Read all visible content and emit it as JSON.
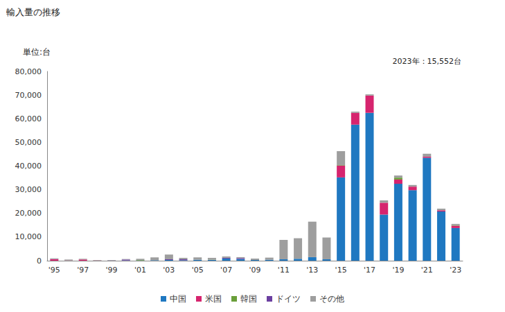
{
  "chart_data": {
    "type": "bar",
    "title": "輸入量の推移",
    "ylabel": "単位:台",
    "annotations": [
      "2023年：15,552台"
    ],
    "stacked": true,
    "grid": false,
    "legend": "bottom",
    "categories": [
      "'95",
      null,
      "'97",
      null,
      "'99",
      null,
      "'01",
      null,
      "'03",
      null,
      "'05",
      null,
      "'07",
      null,
      "'09",
      null,
      "'11",
      null,
      "'13",
      null,
      "'15",
      null,
      "'17",
      null,
      "'19",
      null,
      "'21",
      null,
      "'23"
    ],
    "ylim": [
      0,
      80000
    ],
    "yticks": [
      0,
      {
        "value": 10000,
        "label": "10,000"
      },
      {
        "value": 20000,
        "label": "20,000"
      },
      {
        "value": 30000,
        "label": "30,000"
      },
      {
        "value": 40000,
        "label": "40,000"
      },
      {
        "value": 50000,
        "label": "50,000"
      },
      {
        "value": 60000,
        "label": "60,000"
      },
      {
        "value": 70000,
        "label": "70,000"
      },
      {
        "value": 80000,
        "label": "80,000"
      }
    ],
    "series": [
      {
        "name": "中国",
        "color": "#1f78c1",
        "values": [
          0,
          0,
          0,
          0,
          0,
          100,
          100,
          200,
          300,
          200,
          400,
          300,
          900,
          700,
          300,
          400,
          600,
          800,
          1500,
          600,
          35200,
          57500,
          62500,
          19500,
          32500,
          29800,
          43500,
          20800,
          13800
        ]
      },
      {
        "name": "米国",
        "color": "#d6246e",
        "values": [
          600,
          100,
          500,
          100,
          0,
          0,
          0,
          0,
          0,
          0,
          0,
          0,
          0,
          0,
          0,
          0,
          0,
          0,
          0,
          0,
          5000,
          5000,
          7300,
          5000,
          1800,
          1500,
          500,
          500,
          1000
        ]
      },
      {
        "name": "韓国",
        "color": "#6a9f3a",
        "values": [
          0,
          0,
          0,
          0,
          0,
          0,
          200,
          0,
          0,
          0,
          0,
          100,
          0,
          0,
          0,
          0,
          0,
          0,
          0,
          0,
          200,
          0,
          0,
          0,
          800,
          0,
          0,
          0,
          200
        ]
      },
      {
        "name": "ドイツ",
        "color": "#6b3fa0",
        "values": [
          100,
          0,
          0,
          0,
          100,
          400,
          0,
          0,
          300,
          400,
          0,
          0,
          300,
          400,
          0,
          0,
          0,
          0,
          0,
          0,
          0,
          0,
          0,
          0,
          0,
          0,
          0,
          0,
          0
        ]
      },
      {
        "name": "その他",
        "color": "#9e9e9e",
        "values": [
          300,
          400,
          300,
          200,
          200,
          200,
          500,
          1200,
          2000,
          600,
          1000,
          800,
          600,
          400,
          600,
          900,
          8200,
          8700,
          15000,
          9200,
          5900,
          500,
          500,
          1000,
          900,
          700,
          1200,
          700,
          552
        ]
      }
    ]
  }
}
